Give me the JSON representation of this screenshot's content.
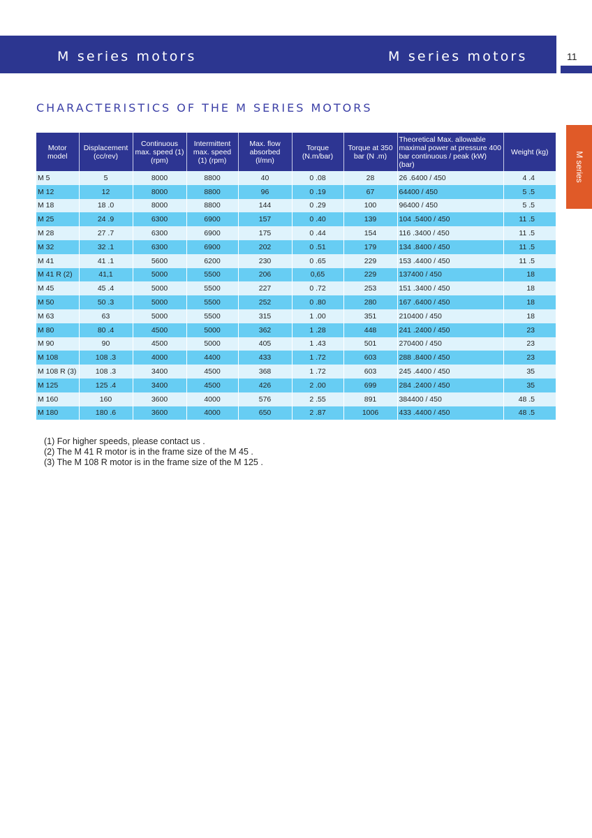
{
  "header": {
    "left_title": "M series motors",
    "right_title": "M series motors",
    "page_number": "11",
    "side_tab": "M series"
  },
  "section_title": "CHARACTERISTICS OF THE M SERIES MOTORS",
  "table": {
    "headers": {
      "model": "Motor model",
      "displacement": "Displacement (cc/rev)",
      "cont_speed": "Continuous max. speed (1) (rpm)",
      "int_speed": "Intermittent max. speed (1) (rpm)",
      "flow": "Max. flow absorbed (l/mn)",
      "torque": "Torque (N.m/bar)",
      "torque350": "Torque at 350 bar (N .m)",
      "power": "Theoretical Max. allowable maximal power at pressure 400 bar continuous / peak (kW) (bar)",
      "weight": "Weight (kg)"
    },
    "rows": [
      {
        "model": "M 5",
        "disp": "5",
        "cont": "8000",
        "int": "8800",
        "flow": "40",
        "torque": "0 .08",
        "t350": "28",
        "power": "26 .6400 / 450",
        "weight": "4 .4"
      },
      {
        "model": "M 12",
        "disp": "12",
        "cont": "8000",
        "int": "8800",
        "flow": "96",
        "torque": "0 .19",
        "t350": "67",
        "power": "64400 / 450",
        "weight": "5 .5"
      },
      {
        "model": "M 18",
        "disp": "18 .0",
        "cont": "8000",
        "int": "8800",
        "flow": "144",
        "torque": "0 .29",
        "t350": "100",
        "power": "96400 / 450",
        "weight": "5 .5"
      },
      {
        "model": "M 25",
        "disp": "24 .9",
        "cont": "6300",
        "int": "6900",
        "flow": "157",
        "torque": "0 .40",
        "t350": "139",
        "power": "104 .5400 / 450",
        "weight": "11 .5"
      },
      {
        "model": "M 28",
        "disp": "27 .7",
        "cont": "6300",
        "int": "6900",
        "flow": "175",
        "torque": "0 .44",
        "t350": "154",
        "power": "116 .3400 / 450",
        "weight": "11 .5"
      },
      {
        "model": "M 32",
        "disp": "32 .1",
        "cont": "6300",
        "int": "6900",
        "flow": "202",
        "torque": "0 .51",
        "t350": "179",
        "power": "134 .8400 / 450",
        "weight": "11 .5"
      },
      {
        "model": "M 41",
        "disp": "41 .1",
        "cont": "5600",
        "int": "6200",
        "flow": "230",
        "torque": "0 .65",
        "t350": "229",
        "power": "153 .4400 / 450",
        "weight": "11 .5"
      },
      {
        "model": "M 41 R (2)",
        "disp": "41,1",
        "cont": "5000",
        "int": "5500",
        "flow": "206",
        "torque": "0,65",
        "t350": "229",
        "power": "137400 / 450",
        "weight": "18"
      },
      {
        "model": "M 45",
        "disp": "45 .4",
        "cont": "5000",
        "int": "5500",
        "flow": "227",
        "torque": "0 .72",
        "t350": "253",
        "power": "151 .3400 / 450",
        "weight": "18"
      },
      {
        "model": "M 50",
        "disp": "50 .3",
        "cont": "5000",
        "int": "5500",
        "flow": "252",
        "torque": "0 .80",
        "t350": "280",
        "power": "167 .6400 / 450",
        "weight": "18"
      },
      {
        "model": "M 63",
        "disp": "63",
        "cont": "5000",
        "int": "5500",
        "flow": "315",
        "torque": "1 .00",
        "t350": "351",
        "power": "210400 / 450",
        "weight": "18"
      },
      {
        "model": "M 80",
        "disp": "80 .4",
        "cont": "4500",
        "int": "5000",
        "flow": "362",
        "torque": "1 .28",
        "t350": "448",
        "power": "241 .2400 / 450",
        "weight": "23"
      },
      {
        "model": "M 90",
        "disp": "90",
        "cont": "4500",
        "int": "5000",
        "flow": "405",
        "torque": "1 .43",
        "t350": "501",
        "power": "270400 / 450",
        "weight": "23"
      },
      {
        "model": "M 108",
        "disp": "108 .3",
        "cont": "4000",
        "int": "4400",
        "flow": "433",
        "torque": "1 .72",
        "t350": "603",
        "power": "288 .8400 / 450",
        "weight": "23"
      },
      {
        "model": "M 108 R (3)",
        "disp": "108 .3",
        "cont": "3400",
        "int": "4500",
        "flow": "368",
        "torque": "1 .72",
        "t350": "603",
        "power": "245 .4400 / 450",
        "weight": "35"
      },
      {
        "model": "M 125",
        "disp": "125 .4",
        "cont": "3400",
        "int": "4500",
        "flow": "426",
        "torque": "2 .00",
        "t350": "699",
        "power": "284 .2400 / 450",
        "weight": "35"
      },
      {
        "model": "M 160",
        "disp": "160",
        "cont": "3600",
        "int": "4000",
        "flow": "576",
        "torque": "2 .55",
        "t350": "891",
        "power": "384400 / 450",
        "weight": "48 .5"
      },
      {
        "model": "M 180",
        "disp": "180 .6",
        "cont": "3600",
        "int": "4000",
        "flow": "650",
        "torque": "2 .87",
        "t350": "1006",
        "power": "433 .4400 / 450",
        "weight": "48 .5"
      }
    ]
  },
  "notes": [
    "(1) For higher speeds, please contact us .",
    "(2) The M 41 R motor is in the frame size of the M 45 .",
    "(3) The M 108 R motor is in the frame size of the M 125 ."
  ]
}
